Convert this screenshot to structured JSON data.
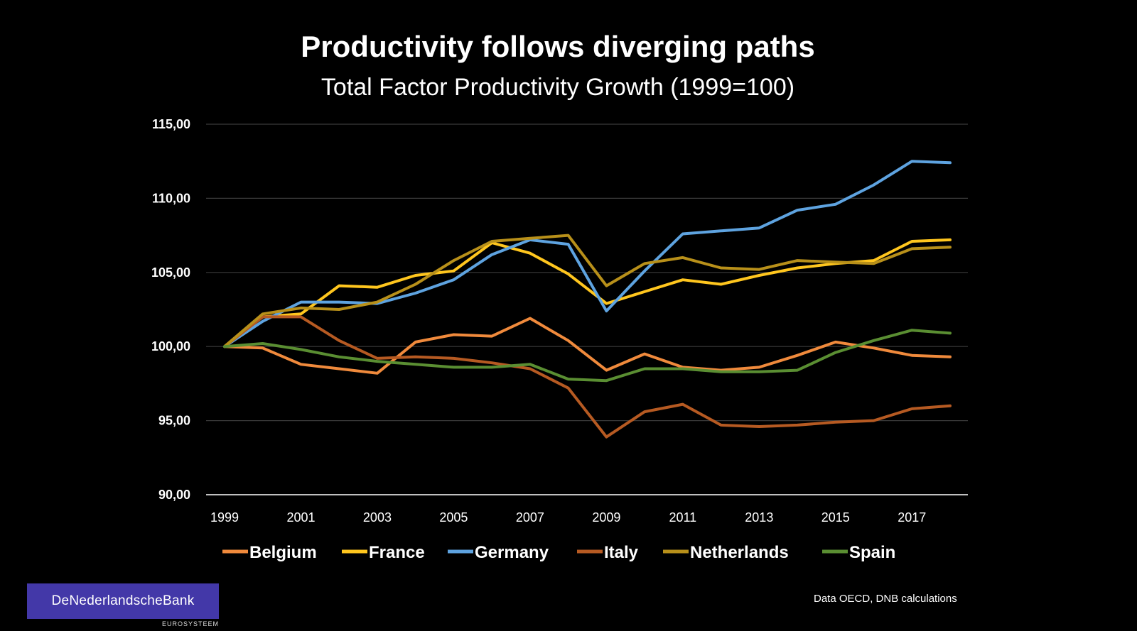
{
  "chart_data": {
    "type": "line",
    "title": "Productivity follows diverging paths",
    "subtitle": "Total Factor Productivity Growth (1999=100)",
    "xlabel": "",
    "ylabel": "",
    "x": [
      1999,
      2000,
      2001,
      2002,
      2003,
      2004,
      2005,
      2006,
      2007,
      2008,
      2009,
      2010,
      2011,
      2012,
      2013,
      2014,
      2015,
      2016,
      2017,
      2018
    ],
    "x_tick_labels": [
      "1999",
      "2001",
      "2003",
      "2005",
      "2007",
      "2009",
      "2011",
      "2013",
      "2015",
      "2017"
    ],
    "x_tick_values": [
      1999,
      2001,
      2003,
      2005,
      2007,
      2009,
      2011,
      2013,
      2015,
      2017
    ],
    "ylim": [
      90,
      115
    ],
    "y_ticks": [
      90,
      95,
      100,
      105,
      110,
      115
    ],
    "y_tick_labels": [
      "90,00",
      "95,00",
      "100,00",
      "105,00",
      "110,00",
      "115,00"
    ],
    "grid": true,
    "legend_position": "bottom",
    "series": [
      {
        "name": "Belgium",
        "color": "#f08a3c",
        "values": [
          100.0,
          99.9,
          98.8,
          98.5,
          98.2,
          100.3,
          100.8,
          100.7,
          101.9,
          100.4,
          98.4,
          99.5,
          98.6,
          98.4,
          98.6,
          99.4,
          100.3,
          99.9,
          99.4,
          99.3
        ]
      },
      {
        "name": "France",
        "color": "#ffc61e",
        "values": [
          100.0,
          102.0,
          102.2,
          104.1,
          104.0,
          104.8,
          105.1,
          107.0,
          106.3,
          104.9,
          102.9,
          103.7,
          104.5,
          104.2,
          104.8,
          105.3,
          105.6,
          105.8,
          107.1,
          107.2
        ]
      },
      {
        "name": "Germany",
        "color": "#5ea3e0",
        "values": [
          100.0,
          101.7,
          103.0,
          103.0,
          102.9,
          103.6,
          104.5,
          106.2,
          107.2,
          106.9,
          102.4,
          105.1,
          107.6,
          107.8,
          108.0,
          109.2,
          109.6,
          110.9,
          112.5,
          112.4
        ]
      },
      {
        "name": "Italy",
        "color": "#b65a22",
        "values": [
          100.0,
          102.0,
          102.0,
          100.4,
          99.2,
          99.3,
          99.2,
          98.9,
          98.5,
          97.2,
          93.9,
          95.6,
          96.1,
          94.7,
          94.6,
          94.7,
          94.9,
          95.0,
          95.8,
          96.0
        ]
      },
      {
        "name": "Netherlands",
        "color": "#b8901a",
        "values": [
          100.0,
          102.2,
          102.6,
          102.5,
          103.0,
          104.2,
          105.8,
          107.1,
          107.3,
          107.5,
          104.1,
          105.6,
          106.0,
          105.3,
          105.2,
          105.8,
          105.7,
          105.6,
          106.6,
          106.7
        ]
      },
      {
        "name": "Spain",
        "color": "#5a8e32",
        "values": [
          100.0,
          100.2,
          99.8,
          99.3,
          99.0,
          98.8,
          98.6,
          98.6,
          98.8,
          97.8,
          97.7,
          98.5,
          98.5,
          98.3,
          98.3,
          98.4,
          99.6,
          100.4,
          101.1,
          100.9
        ]
      }
    ]
  },
  "footer": {
    "logo_text": "DeNederlandscheBank",
    "logo_subtext": "EUROSYSTEEM",
    "source": "Data OECD, DNB calculations"
  }
}
